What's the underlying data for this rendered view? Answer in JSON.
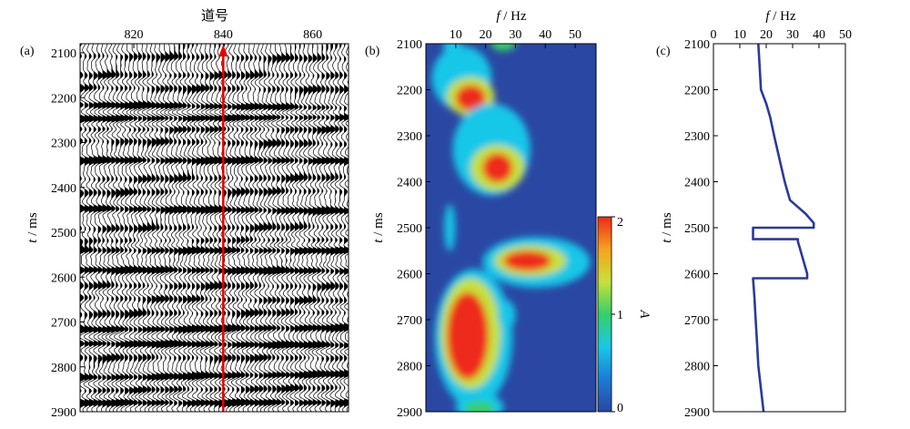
{
  "figure": {
    "panels": [
      {
        "tag": "(a)"
      },
      {
        "tag": "(b)"
      },
      {
        "tag": "(c)"
      }
    ]
  },
  "chart_data": [
    {
      "type": "heatmap",
      "panel": "(a)",
      "description_kind": "seismic wiggle section",
      "xlabel": "道号",
      "ylabel": "t / ms",
      "xlim": [
        808,
        868
      ],
      "ylim": [
        2900,
        2080
      ],
      "x_ticks": [
        820,
        840,
        860
      ],
      "y_ticks": [
        2100,
        2200,
        2300,
        2400,
        2500,
        2600,
        2700,
        2800,
        2900
      ],
      "marked_trace": 840,
      "marked_trace_color": "#e60000",
      "wiggle_color": "#000000",
      "strong_reflections_ms": [
        2220,
        2245,
        2340,
        2450,
        2540,
        2585,
        2715,
        2750,
        2820,
        2880
      ],
      "weak_reflections_ms": [
        2110,
        2150,
        2180,
        2270,
        2300,
        2380,
        2410,
        2490,
        2520,
        2620,
        2650,
        2680,
        2780,
        2850
      ]
    },
    {
      "type": "heatmap",
      "panel": "(b)",
      "description_kind": "time-frequency amplitude spectrum",
      "xlabel": "f / Hz",
      "ylabel": "t / ms",
      "colorbar_label": "A",
      "xlim": [
        0,
        57
      ],
      "ylim": [
        2900,
        2100
      ],
      "x_ticks": [
        10,
        20,
        30,
        40,
        50
      ],
      "y_ticks": [
        2100,
        2200,
        2300,
        2400,
        2500,
        2600,
        2700,
        2800,
        2900
      ],
      "colorbar_range": [
        0,
        2
      ],
      "colorbar_ticks": [
        0,
        1,
        2
      ],
      "colormap": [
        "#2a47a3",
        "#1b7bd6",
        "#19c7e8",
        "#35cf6a",
        "#c6e13a",
        "#f6a31e",
        "#ee2a1a"
      ],
      "background_color": "#2a47a3",
      "energy_blobs": [
        {
          "f_hz": 14,
          "t_ms": 2215,
          "peak_amplitude": 2.0
        },
        {
          "f_hz": 24,
          "t_ms": 2370,
          "peak_amplitude": 2.0
        },
        {
          "f_hz": 35,
          "t_ms": 2570,
          "peak_amplitude": 2.0
        },
        {
          "f_hz": 15,
          "t_ms": 2730,
          "peak_amplitude": 2.0
        },
        {
          "f_hz": 18,
          "t_ms": 2890,
          "peak_amplitude": 1.3
        }
      ]
    },
    {
      "type": "line",
      "panel": "(c)",
      "xlabel": "f / Hz",
      "ylabel": "t / ms",
      "xlim": [
        0,
        50
      ],
      "ylim": [
        2900,
        2100
      ],
      "x_ticks": [
        0,
        10,
        20,
        30,
        40,
        50
      ],
      "y_ticks": [
        2100,
        2200,
        2300,
        2400,
        2500,
        2600,
        2700,
        2800,
        2900
      ],
      "line_color": "#2a3a9c",
      "series": [
        {
          "t_ms": [
            2100,
            2150,
            2200,
            2230,
            2260,
            2300,
            2350,
            2400,
            2440,
            2470,
            2490,
            2500,
            2500,
            2525,
            2525,
            2530,
            2540,
            2600,
            2610,
            2610,
            2650,
            2700,
            2750,
            2800,
            2850,
            2900
          ],
          "f_hz": [
            17,
            17.5,
            18,
            20,
            21.5,
            23,
            25,
            27,
            29,
            35,
            38,
            38,
            15,
            15,
            32,
            32,
            32.5,
            35.5,
            35.5,
            15,
            15.5,
            16,
            16.5,
            17,
            18,
            19
          ]
        }
      ]
    }
  ]
}
